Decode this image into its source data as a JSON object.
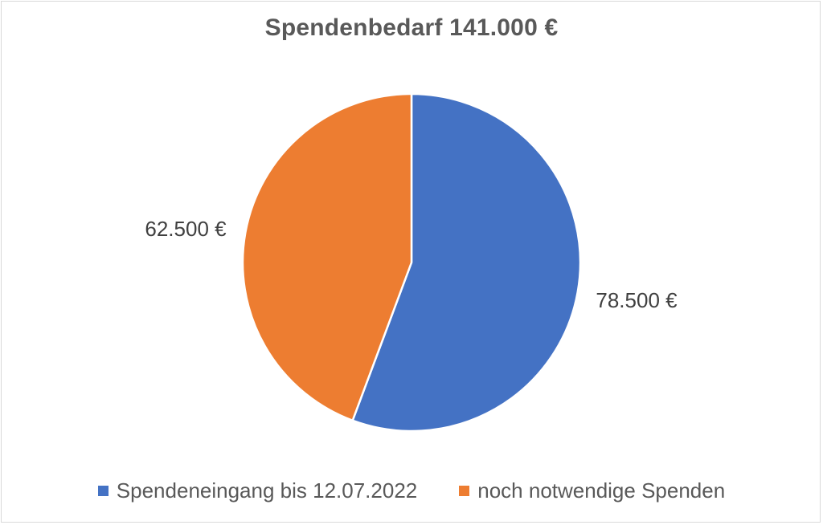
{
  "chart_data": {
    "type": "pie",
    "title": "Spendenbedarf 141.000 €",
    "slices": [
      {
        "name": "Spendeneingang bis 12.07.2022",
        "value": 78500,
        "label": "78.500 €",
        "color": "#4472C4"
      },
      {
        "name": "noch notwendige Spenden",
        "value": 62500,
        "label": "62.500 €",
        "color": "#ED7D31"
      }
    ],
    "legend_position": "bottom"
  }
}
